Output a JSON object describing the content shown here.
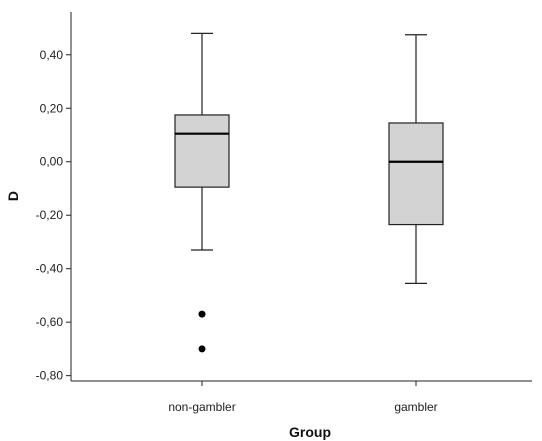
{
  "chart_data": {
    "type": "boxplot",
    "xlabel": "Group",
    "ylabel": "D",
    "ylim": [
      -0.82,
      0.56
    ],
    "yticks": [
      -0.8,
      -0.6,
      -0.4,
      -0.2,
      0.0,
      0.2,
      0.4
    ],
    "ytick_labels": [
      "-0,80",
      "-0,60",
      "-0,40",
      "-0,20",
      "0,00",
      "0,20",
      "0,40"
    ],
    "categories": [
      "non-gambler",
      "gambler"
    ],
    "boxes": [
      {
        "category": "non-gambler",
        "whisker_low": -0.33,
        "q1": -0.095,
        "median": 0.105,
        "q3": 0.175,
        "whisker_high": 0.48,
        "outliers": [
          -0.57,
          -0.7
        ]
      },
      {
        "category": "gambler",
        "whisker_low": -0.455,
        "q1": -0.235,
        "median": 0.0,
        "q3": 0.145,
        "whisker_high": 0.475,
        "outliers": []
      }
    ],
    "grid": false,
    "colors": {
      "box_fill": "#d3d3d3",
      "box_stroke": "#222222",
      "outlier": "#000000"
    }
  }
}
